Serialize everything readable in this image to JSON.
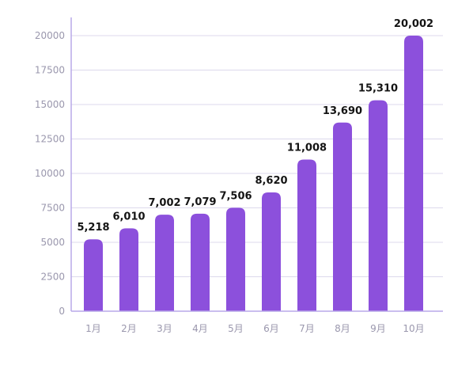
{
  "chart_data": {
    "type": "bar",
    "categories": [
      "1月",
      "2月",
      "3月",
      "4月",
      "5月",
      "6月",
      "7月",
      "8月",
      "9月",
      "10月"
    ],
    "values": [
      5218,
      6010,
      7002,
      7079,
      7506,
      8620,
      11008,
      13690,
      15310,
      20002
    ],
    "value_labels": [
      "5,218",
      "6,010",
      "7,002",
      "7,079",
      "7,506",
      "8,620",
      "11,008",
      "13,690",
      "15,310",
      "20,002"
    ],
    "y_ticks": [
      0,
      2500,
      5000,
      7500,
      10000,
      12500,
      15000,
      17500,
      20000
    ],
    "ylim": [
      0,
      20000
    ],
    "title": "",
    "xlabel": "",
    "ylabel": "",
    "grid": true,
    "colors": {
      "bar": "#8c50dc",
      "grid": "#dcd9ec",
      "axis": "#b8a8e8"
    }
  }
}
